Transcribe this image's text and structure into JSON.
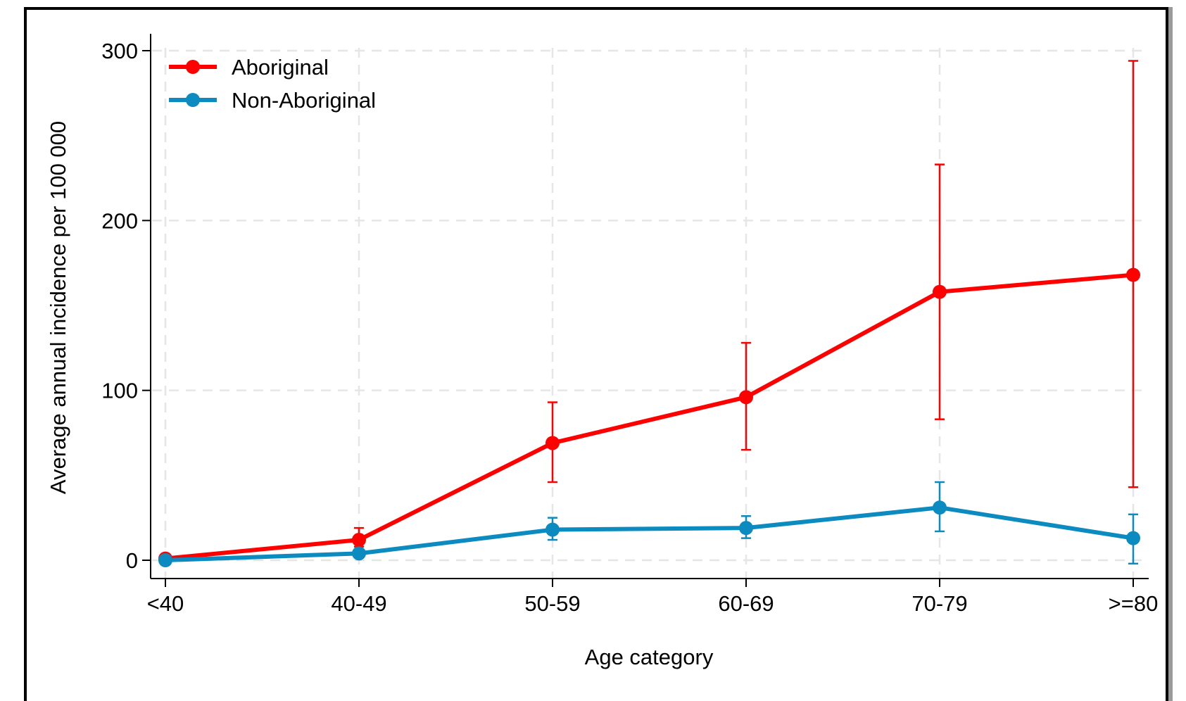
{
  "chart_data": {
    "type": "line",
    "categories": [
      "<40",
      "40-49",
      "50-59",
      "60-69",
      "70-79",
      ">=80"
    ],
    "series": [
      {
        "name": "Aboriginal",
        "color": "#ff0000",
        "values": [
          1,
          12,
          69,
          96,
          158,
          168
        ],
        "ci_low": [
          null,
          8,
          46,
          65,
          83,
          43
        ],
        "ci_high": [
          null,
          19,
          93,
          128,
          233,
          294
        ]
      },
      {
        "name": "Non-Aboriginal",
        "color": "#0b8bc0",
        "values": [
          0,
          4,
          18,
          19,
          31,
          13
        ],
        "ci_low": [
          null,
          null,
          12,
          13,
          17,
          -2
        ],
        "ci_high": [
          null,
          null,
          25,
          26,
          46,
          27
        ]
      }
    ],
    "xlabel": "Age category",
    "ylabel": "Average annual incidence per 100 000",
    "ylim": [
      0,
      300
    ],
    "yticks": [
      0,
      100,
      200,
      300
    ],
    "grid": true,
    "legend_position": "top-left"
  }
}
